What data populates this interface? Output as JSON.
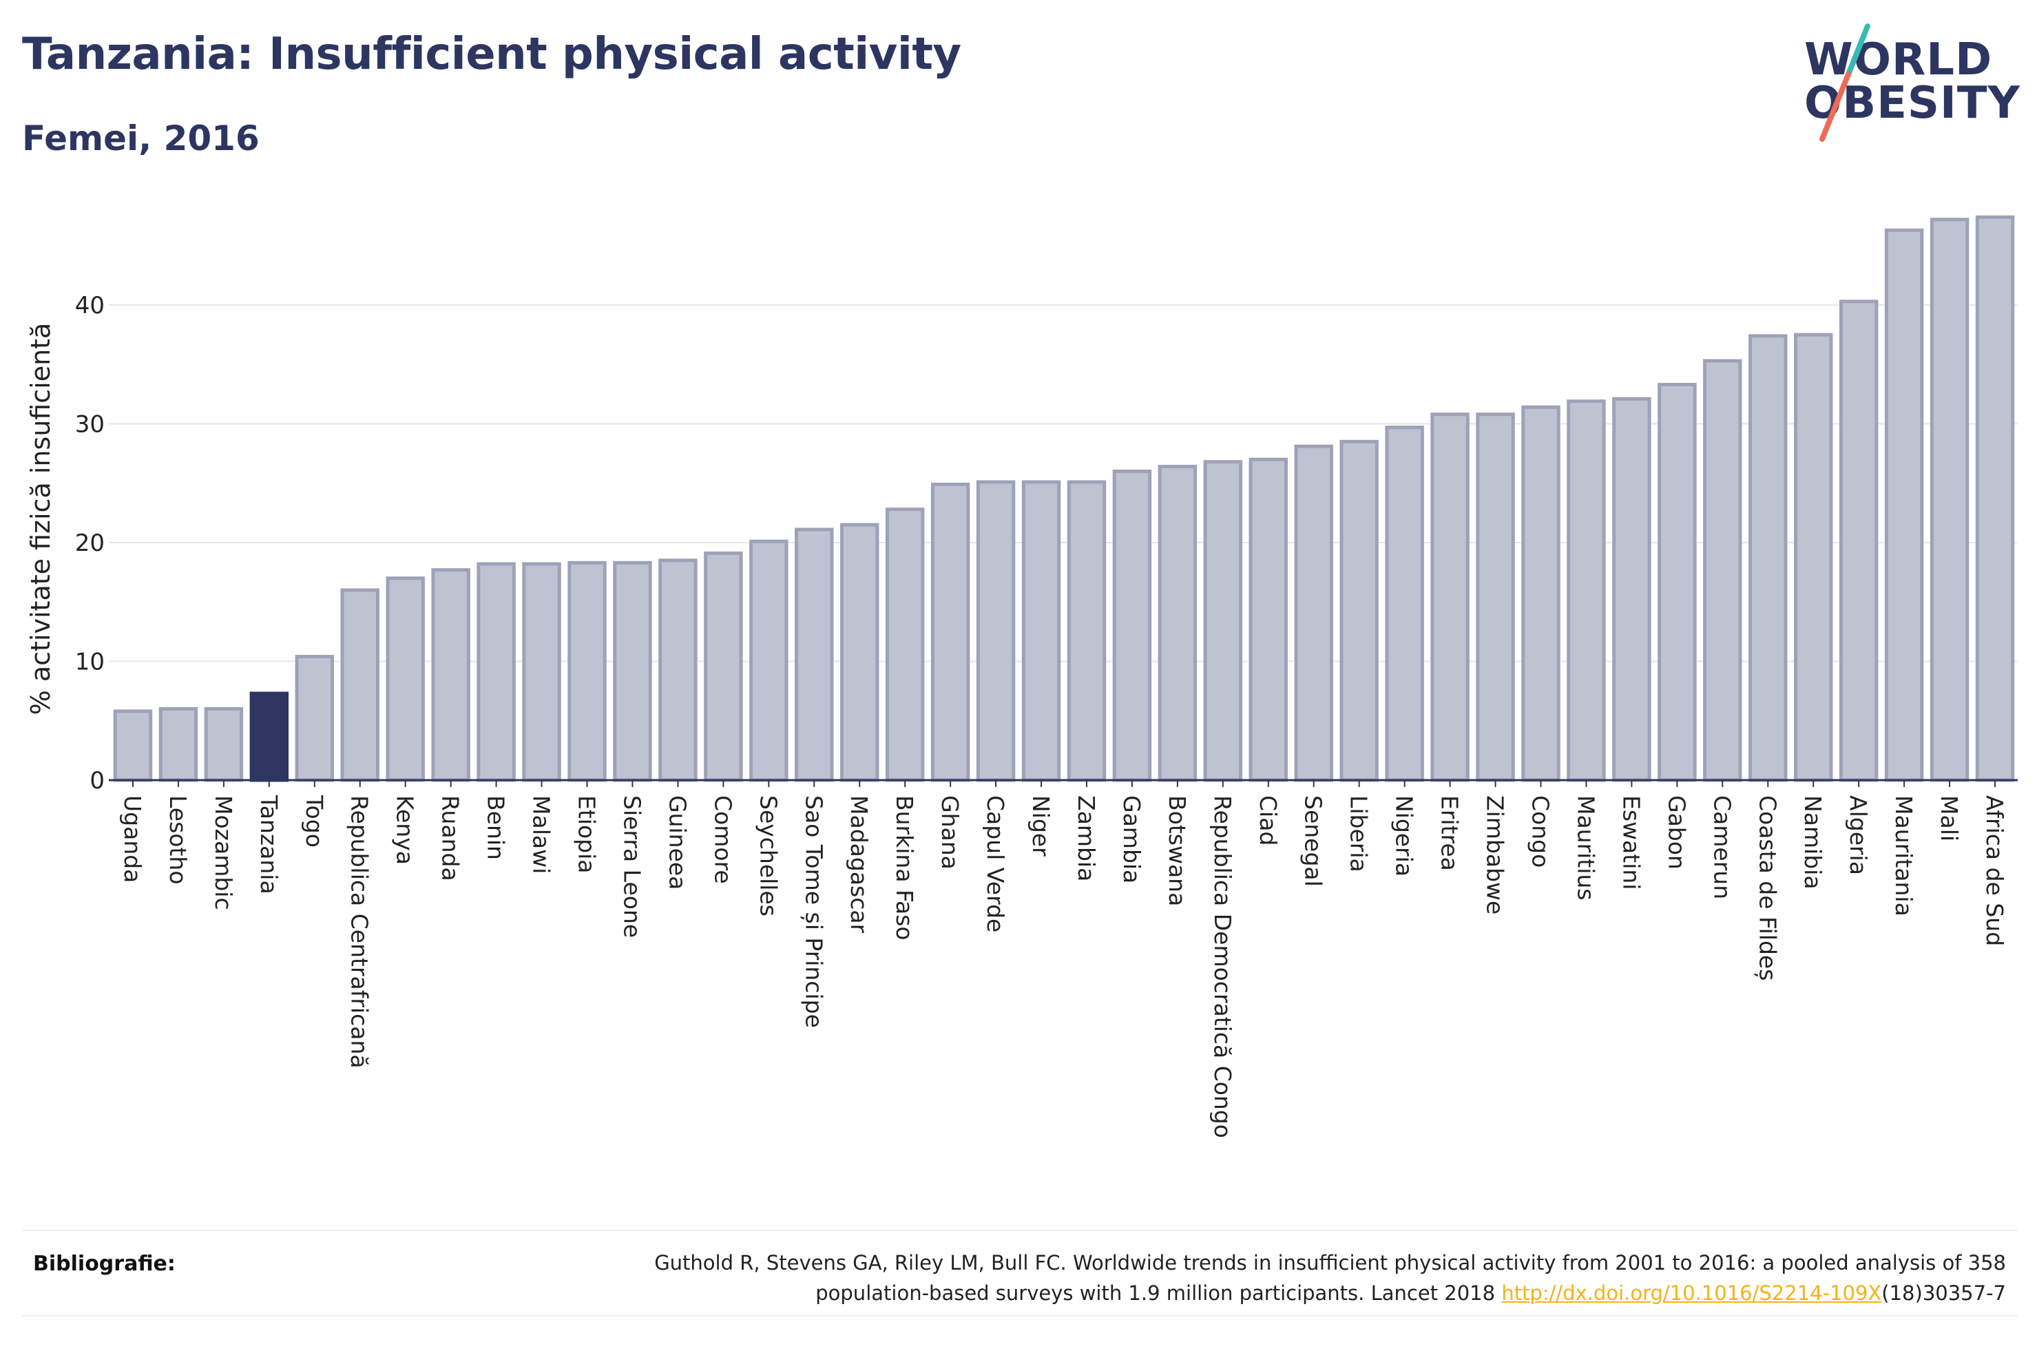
{
  "header": {
    "title": "Tanzania: Insufficient physical activity",
    "subtitle": "Femei, 2016"
  },
  "logo": {
    "line1": "WORLD",
    "line2": "OBESITY",
    "slash_colors": [
      "#38b9b4",
      "#ef6b57"
    ]
  },
  "colors": {
    "bar_default_fill": "#bfc3d1",
    "bar_default_stroke": "#9da2b8",
    "bar_highlight": "#2d3561",
    "axis": "#2d3561",
    "gridline": "#e6e6e6",
    "text": "#2d3561",
    "link": "#f3b21b"
  },
  "chart_data": {
    "type": "bar",
    "ylabel": "% activitate fizică insuficientă",
    "xlabel": "",
    "ylim": [
      0,
      48
    ],
    "yticks": [
      0,
      10,
      20,
      30,
      40
    ],
    "grid": true,
    "highlight": "Tanzania",
    "categories": [
      "Uganda",
      "Lesotho",
      "Mozambic",
      "Tanzania",
      "Togo",
      "Republica Centrafricană",
      "Kenya",
      "Ruanda",
      "Benin",
      "Malawi",
      "Etiopia",
      "Sierra Leone",
      "Guineea",
      "Comore",
      "Seychelles",
      "Sao Tome și Principe",
      "Madagascar",
      "Burkina Faso",
      "Ghana",
      "Capul Verde",
      "Niger",
      "Zambia",
      "Gambia",
      "Botswana",
      "Republica Democratică Congo",
      "Ciad",
      "Senegal",
      "Liberia",
      "Nigeria",
      "Eritrea",
      "Zimbabwe",
      "Congo",
      "Mauritius",
      "Eswatini",
      "Gabon",
      "Camerun",
      "Coasta de Fildeș",
      "Namibia",
      "Algeria",
      "Mauritania",
      "Mali",
      "Africa de Sud"
    ],
    "values": [
      5.8,
      6.0,
      6.0,
      7.3,
      10.4,
      16.0,
      17.0,
      17.7,
      18.2,
      18.2,
      18.3,
      18.3,
      18.5,
      19.1,
      20.1,
      21.1,
      21.5,
      22.8,
      24.9,
      25.1,
      25.1,
      25.1,
      26.0,
      26.4,
      26.8,
      27.0,
      28.1,
      28.5,
      29.7,
      30.8,
      30.8,
      31.4,
      31.9,
      32.1,
      33.3,
      35.3,
      37.4,
      37.5,
      40.3,
      46.3,
      47.2,
      47.4
    ]
  },
  "bibliography": {
    "label": "Bibliografie:",
    "line1": "Guthold R, Stevens GA, Riley LM, Bull FC. Worldwide trends in insufficient physical activity from 2001 to 2016: a pooled analysis of 358",
    "line2_prefix": "population-based surveys with 1.9 million participants. Lancet 2018 ",
    "link_text": "http://dx.doi.org/10.1016/S2214-109X",
    "line2_suffix": "(18)30357-7"
  }
}
